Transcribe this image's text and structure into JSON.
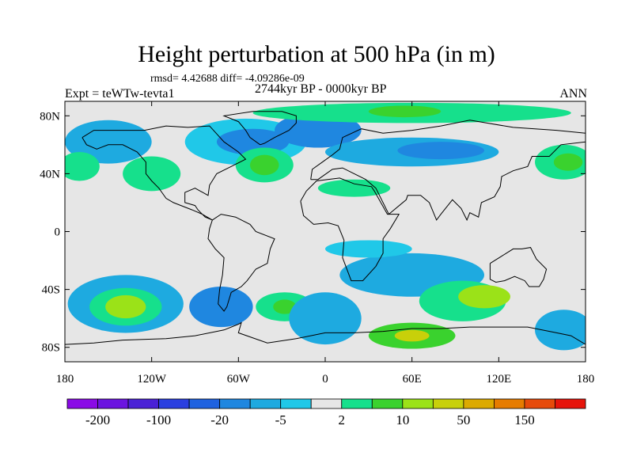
{
  "title": "Height perturbation at 500 hPa (in m)",
  "stats": "rmsd= 4.42688 diff= -4.09286e-09",
  "experiment": "Expt = teWTw-tevta1",
  "period": "2744kyr BP - 0000kyr BP",
  "season": "ANN",
  "map": {
    "lon_range": [
      -180,
      180
    ],
    "lat_range": [
      -90,
      90
    ],
    "background_color": "#e6e6e6",
    "land_outline_color": "#000000",
    "x_ticks": [
      {
        "lon": -180,
        "label": "180"
      },
      {
        "lon": -120,
        "label": "120W"
      },
      {
        "lon": -60,
        "label": "60W"
      },
      {
        "lon": 0,
        "label": "0"
      },
      {
        "lon": 60,
        "label": "60E"
      },
      {
        "lon": 120,
        "label": "120E"
      },
      {
        "lon": 180,
        "label": "180"
      }
    ],
    "y_ticks": [
      {
        "lat": 80,
        "label": "80N"
      },
      {
        "lat": 40,
        "label": "40N"
      },
      {
        "lat": 0,
        "label": "0"
      },
      {
        "lat": -40,
        "label": "40S"
      },
      {
        "lat": -80,
        "label": "80S"
      }
    ]
  },
  "colorbar": {
    "colors": [
      "#8a0ae6",
      "#6b14e0",
      "#4a21d6",
      "#2a3fe0",
      "#1f62e0",
      "#1f87e0",
      "#1eaae0",
      "#20c8e8",
      "#e6e6e6",
      "#16e08c",
      "#3ad22e",
      "#9be218",
      "#c8d00a",
      "#dcaa00",
      "#e67c00",
      "#e64a0a",
      "#e6140a"
    ],
    "labels": [
      {
        "after_box": 1,
        "text": "-200"
      },
      {
        "after_box": 3,
        "text": "-100"
      },
      {
        "after_box": 5,
        "text": "-20"
      },
      {
        "after_box": 7,
        "text": "-5"
      },
      {
        "after_box": 9,
        "text": "2"
      },
      {
        "after_box": 11,
        "text": "10"
      },
      {
        "after_box": 13,
        "text": "50"
      },
      {
        "after_box": 15,
        "text": "150"
      }
    ]
  },
  "anomaly_regions": [
    {
      "name": "north-atlantic-negative",
      "lon": -55,
      "lat": 62,
      "rx": 42,
      "ry": 16,
      "color": "#20c8e8"
    },
    {
      "name": "north-atlantic-negative-core",
      "lon": -50,
      "lat": 62,
      "rx": 25,
      "ry": 9,
      "color": "#1f87e0"
    },
    {
      "name": "greenland-negative",
      "lon": -5,
      "lat": 70,
      "rx": 30,
      "ry": 12,
      "color": "#1f87e0"
    },
    {
      "name": "eurasia-negative-band",
      "lon": 60,
      "lat": 55,
      "rx": 60,
      "ry": 10,
      "color": "#1eaae0"
    },
    {
      "name": "eurasia-negative-core",
      "lon": 80,
      "lat": 56,
      "rx": 30,
      "ry": 6,
      "color": "#1f87e0"
    },
    {
      "name": "arctic-positive",
      "lon": 60,
      "lat": 82,
      "rx": 110,
      "ry": 7,
      "color": "#16e08c"
    },
    {
      "name": "arctic-positive-core",
      "lon": 55,
      "lat": 83,
      "rx": 25,
      "ry": 4,
      "color": "#3ad22e"
    },
    {
      "name": "pacific-negative",
      "lon": -150,
      "lat": 62,
      "rx": 30,
      "ry": 15,
      "color": "#1eaae0"
    },
    {
      "name": "n-pacific-positive",
      "lon": -120,
      "lat": 40,
      "rx": 20,
      "ry": 12,
      "color": "#16e08c"
    },
    {
      "name": "w-atlantic-positive",
      "lon": -42,
      "lat": 46,
      "rx": 20,
      "ry": 12,
      "color": "#16e08c"
    },
    {
      "name": "w-atlantic-positive-core",
      "lon": -42,
      "lat": 46,
      "rx": 10,
      "ry": 7,
      "color": "#3ad22e"
    },
    {
      "name": "far-east-positive",
      "lon": 165,
      "lat": 48,
      "rx": 20,
      "ry": 12,
      "color": "#16e08c"
    },
    {
      "name": "far-east-positive-core",
      "lon": 168,
      "lat": 48,
      "rx": 10,
      "ry": 6,
      "color": "#3ad22e"
    },
    {
      "name": "west-pacific-positive",
      "lon": -170,
      "lat": 45,
      "rx": 14,
      "ry": 10,
      "color": "#16e08c"
    },
    {
      "name": "north-africa-positive",
      "lon": 20,
      "lat": 30,
      "rx": 25,
      "ry": 6,
      "color": "#16e08c"
    },
    {
      "name": "south-pacific-negative",
      "lon": -138,
      "lat": -50,
      "rx": 40,
      "ry": 20,
      "color": "#1eaae0"
    },
    {
      "name": "south-pacific-positive",
      "lon": -138,
      "lat": -52,
      "rx": 25,
      "ry": 13,
      "color": "#16e08c"
    },
    {
      "name": "south-pacific-positive-core",
      "lon": -138,
      "lat": -52,
      "rx": 14,
      "ry": 8,
      "color": "#9be218"
    },
    {
      "name": "south-america-negative",
      "lon": -72,
      "lat": -52,
      "rx": 22,
      "ry": 14,
      "color": "#1f87e0"
    },
    {
      "name": "south-atlantic-positive",
      "lon": -28,
      "lat": -52,
      "rx": 20,
      "ry": 10,
      "color": "#16e08c"
    },
    {
      "name": "south-atlantic-positive-core",
      "lon": -28,
      "lat": -52,
      "rx": 8,
      "ry": 5,
      "color": "#3ad22e"
    },
    {
      "name": "south-atlantic-negative",
      "lon": 0,
      "lat": -60,
      "rx": 25,
      "ry": 18,
      "color": "#1eaae0"
    },
    {
      "name": "indian-ocean-negative",
      "lon": 60,
      "lat": -30,
      "rx": 50,
      "ry": 15,
      "color": "#1eaae0"
    },
    {
      "name": "indian-ocean-positive",
      "lon": 95,
      "lat": -48,
      "rx": 30,
      "ry": 14,
      "color": "#16e08c"
    },
    {
      "name": "australia-positive-core",
      "lon": 110,
      "lat": -45,
      "rx": 18,
      "ry": 8,
      "color": "#9be218"
    },
    {
      "name": "antarctic-positive",
      "lon": 60,
      "lat": -72,
      "rx": 30,
      "ry": 9,
      "color": "#3ad22e"
    },
    {
      "name": "antarctic-positive-core",
      "lon": 60,
      "lat": -72,
      "rx": 12,
      "ry": 4,
      "color": "#c8d00a"
    },
    {
      "name": "pacific-sector-negative",
      "lon": 165,
      "lat": -68,
      "rx": 20,
      "ry": 14,
      "color": "#1eaae0"
    },
    {
      "name": "tropical-atlantic-negative",
      "lon": 30,
      "lat": -12,
      "rx": 30,
      "ry": 6,
      "color": "#20c8e8"
    }
  ],
  "land_outlines": [
    {
      "name": "north-america-outline",
      "points": [
        [
          -168,
          65
        ],
        [
          -160,
          70
        ],
        [
          -140,
          70
        ],
        [
          -125,
          70
        ],
        [
          -110,
          73
        ],
        [
          -95,
          72
        ],
        [
          -80,
          73
        ],
        [
          -70,
          62
        ],
        [
          -60,
          55
        ],
        [
          -55,
          50
        ],
        [
          -65,
          45
        ],
        [
          -75,
          40
        ],
        [
          -80,
          32
        ],
        [
          -81,
          25
        ],
        [
          -90,
          30
        ],
        [
          -97,
          27
        ],
        [
          -97,
          20
        ],
        [
          -90,
          18
        ],
        [
          -88,
          15
        ],
        [
          -83,
          10
        ],
        [
          -78,
          8
        ],
        [
          -85,
          12
        ],
        [
          -92,
          15
        ],
        [
          -105,
          20
        ],
        [
          -110,
          23
        ],
        [
          -115,
          30
        ],
        [
          -120,
          35
        ],
        [
          -124,
          40
        ],
        [
          -124,
          48
        ],
        [
          -130,
          55
        ],
        [
          -140,
          60
        ],
        [
          -150,
          60
        ],
        [
          -158,
          57
        ],
        [
          -165,
          60
        ],
        [
          -168,
          65
        ]
      ]
    },
    {
      "name": "south-america-outline",
      "points": [
        [
          -78,
          8
        ],
        [
          -72,
          12
        ],
        [
          -62,
          10
        ],
        [
          -52,
          5
        ],
        [
          -48,
          0
        ],
        [
          -35,
          -5
        ],
        [
          -38,
          -12
        ],
        [
          -40,
          -22
        ],
        [
          -48,
          -26
        ],
        [
          -54,
          -34
        ],
        [
          -58,
          -38
        ],
        [
          -65,
          -42
        ],
        [
          -68,
          -52
        ],
        [
          -70,
          -55
        ],
        [
          -74,
          -50
        ],
        [
          -73,
          -40
        ],
        [
          -71,
          -30
        ],
        [
          -70,
          -18
        ],
        [
          -76,
          -12
        ],
        [
          -81,
          -5
        ],
        [
          -80,
          2
        ],
        [
          -78,
          8
        ]
      ]
    },
    {
      "name": "africa-outline",
      "points": [
        [
          -17,
          21
        ],
        [
          -13,
          28
        ],
        [
          -6,
          35
        ],
        [
          10,
          37
        ],
        [
          20,
          33
        ],
        [
          32,
          31
        ],
        [
          34,
          28
        ],
        [
          43,
          12
        ],
        [
          51,
          12
        ],
        [
          45,
          2
        ],
        [
          40,
          -5
        ],
        [
          40,
          -15
        ],
        [
          35,
          -24
        ],
        [
          26,
          -34
        ],
        [
          18,
          -34
        ],
        [
          12,
          -18
        ],
        [
          13,
          -6
        ],
        [
          9,
          4
        ],
        [
          2,
          6
        ],
        [
          -8,
          5
        ],
        [
          -15,
          11
        ],
        [
          -17,
          21
        ]
      ]
    },
    {
      "name": "eurasia-outline",
      "points": [
        [
          -10,
          36
        ],
        [
          -9,
          43
        ],
        [
          -2,
          48
        ],
        [
          5,
          53
        ],
        [
          10,
          57
        ],
        [
          12,
          65
        ],
        [
          25,
          71
        ],
        [
          40,
          68
        ],
        [
          60,
          70
        ],
        [
          80,
          73
        ],
        [
          100,
          77
        ],
        [
          130,
          72
        ],
        [
          160,
          70
        ],
        [
          180,
          68
        ],
        [
          180,
          62
        ],
        [
          163,
          60
        ],
        [
          155,
          52
        ],
        [
          143,
          52
        ],
        [
          140,
          45
        ],
        [
          130,
          42
        ],
        [
          122,
          38
        ],
        [
          121,
          31
        ],
        [
          117,
          24
        ],
        [
          108,
          20
        ],
        [
          106,
          10
        ],
        [
          100,
          13
        ],
        [
          98,
          8
        ],
        [
          94,
          16
        ],
        [
          88,
          22
        ],
        [
          80,
          12
        ],
        [
          77,
          8
        ],
        [
          72,
          20
        ],
        [
          66,
          25
        ],
        [
          57,
          25
        ],
        [
          56,
          22
        ],
        [
          44,
          12
        ],
        [
          35,
          30
        ],
        [
          28,
          36
        ],
        [
          20,
          40
        ],
        [
          12,
          44
        ],
        [
          5,
          43
        ],
        [
          -5,
          36
        ],
        [
          -10,
          36
        ]
      ]
    },
    {
      "name": "greenland-outline",
      "points": [
        [
          -45,
          60
        ],
        [
          -52,
          65
        ],
        [
          -55,
          70
        ],
        [
          -60,
          76
        ],
        [
          -70,
          80
        ],
        [
          -50,
          83
        ],
        [
          -30,
          83
        ],
        [
          -20,
          80
        ],
        [
          -20,
          75
        ],
        [
          -25,
          70
        ],
        [
          -35,
          65
        ],
        [
          -42,
          61
        ],
        [
          -45,
          60
        ]
      ]
    },
    {
      "name": "australia-outline",
      "points": [
        [
          114,
          -22
        ],
        [
          114,
          -33
        ],
        [
          118,
          -35
        ],
        [
          124,
          -34
        ],
        [
          131,
          -31
        ],
        [
          138,
          -34
        ],
        [
          141,
          -38
        ],
        [
          148,
          -38
        ],
        [
          151,
          -33
        ],
        [
          153,
          -26
        ],
        [
          146,
          -19
        ],
        [
          142,
          -11
        ],
        [
          136,
          -12
        ],
        [
          130,
          -12
        ],
        [
          122,
          -17
        ],
        [
          114,
          -22
        ]
      ]
    },
    {
      "name": "antarctica-outline",
      "points": [
        [
          -180,
          -78
        ],
        [
          -160,
          -77
        ],
        [
          -140,
          -75
        ],
        [
          -110,
          -74
        ],
        [
          -90,
          -72
        ],
        [
          -70,
          -68
        ],
        [
          -60,
          -64
        ],
        [
          -58,
          -63
        ],
        [
          -60,
          -70
        ],
        [
          -40,
          -77
        ],
        [
          -20,
          -74
        ],
        [
          0,
          -70
        ],
        [
          20,
          -70
        ],
        [
          40,
          -69
        ],
        [
          60,
          -67
        ],
        [
          80,
          -67
        ],
        [
          100,
          -66
        ],
        [
          120,
          -66
        ],
        [
          140,
          -66
        ],
        [
          160,
          -70
        ],
        [
          170,
          -72
        ],
        [
          180,
          -78
        ]
      ]
    }
  ]
}
